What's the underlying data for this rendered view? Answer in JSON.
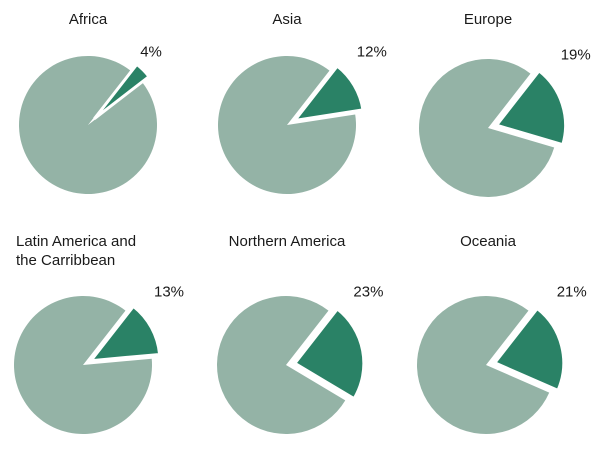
{
  "chart_data": {
    "type": "pie",
    "colors": {
      "rest": "#94b3a6",
      "highlight": "#2a8266",
      "separator": "#ffffff"
    },
    "charts": [
      {
        "title": [
          "Africa"
        ],
        "value": 4,
        "label": "4%"
      },
      {
        "title": [
          "Asia"
        ],
        "value": 12,
        "label": "12%"
      },
      {
        "title": [
          "Europe"
        ],
        "value": 19,
        "label": "19%"
      },
      {
        "title": [
          "Latin America and",
          "the Carribbean"
        ],
        "value": 13,
        "label": "13%"
      },
      {
        "title": [
          "Northern America"
        ],
        "value": 23,
        "label": "23%"
      },
      {
        "title": [
          "Oceania"
        ],
        "value": 21,
        "label": "21%"
      }
    ]
  }
}
